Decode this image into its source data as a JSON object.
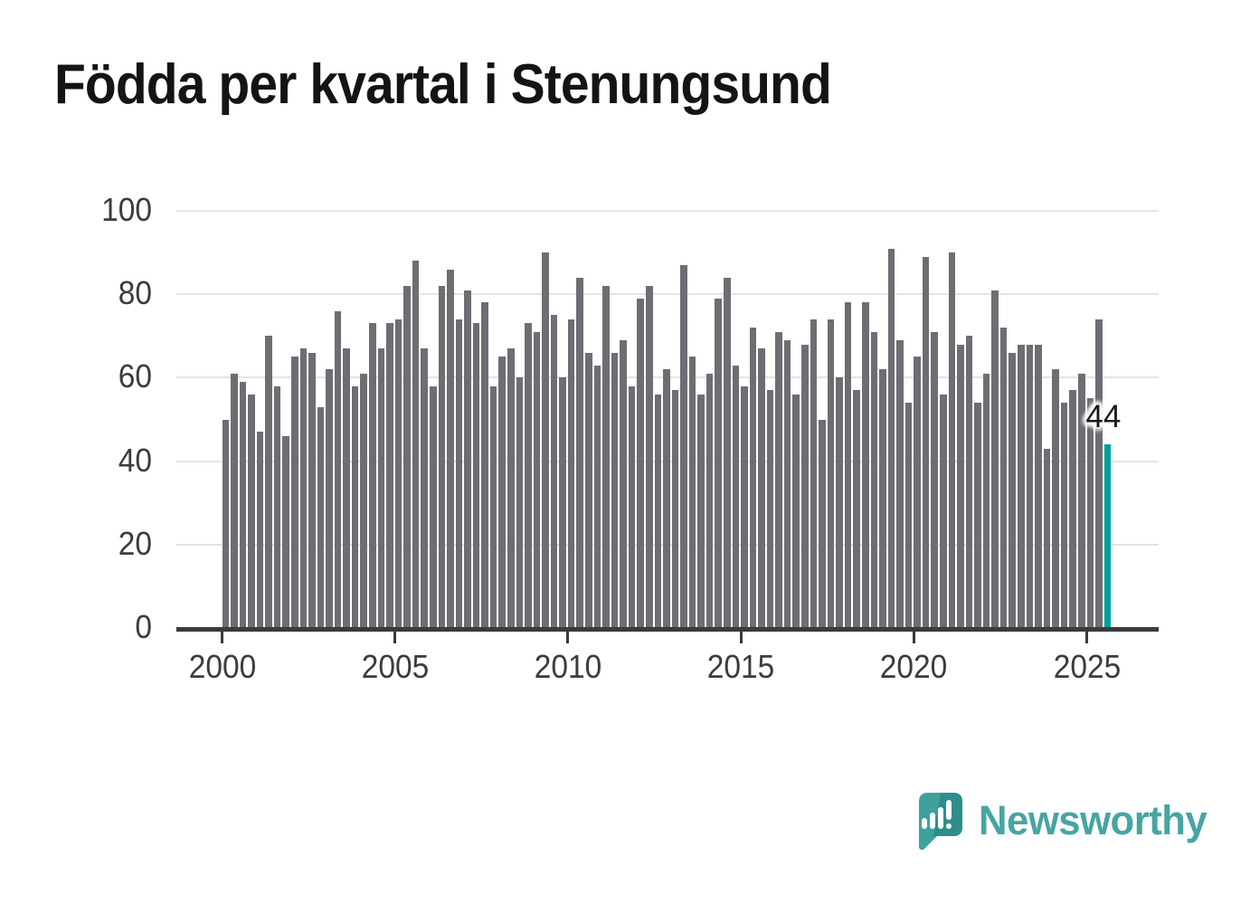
{
  "title": "Födda per kvartal i Stenungsund",
  "annotation": {
    "last_value_label": "44"
  },
  "logo": {
    "text": "Newsworthy",
    "icon": "newsworthy-speech-bubble-chart-icon"
  },
  "colors": {
    "bar": "#6d6d73",
    "highlight": "#00a09a",
    "axis": "#3a3a3e",
    "grid": "#e4e4e4",
    "tick_text": "#3c3c3c",
    "title_text": "#141414",
    "label_text": "#1a1a1a",
    "label_halo": "#ffffff",
    "logo_teal": "#46a5a3",
    "logo_icon": "#3ea19c",
    "logo_icon_dark": "#2e8e8a",
    "background": "#ffffff"
  },
  "chart_data": {
    "type": "bar",
    "title": "Födda per kvartal i Stenungsund",
    "x_unit": "quarter",
    "start_period": "2000 Q1",
    "end_period": "2025 Q3",
    "x_tick_labels": [
      "2000",
      "2005",
      "2010",
      "2015",
      "2020",
      "2025"
    ],
    "y_ticks": [
      0,
      20,
      40,
      60,
      80,
      100
    ],
    "ylim": [
      0,
      100
    ],
    "grid": true,
    "legend": "none",
    "highlight_last_bar": true,
    "last_bar_label": "44",
    "values": [
      50,
      61,
      59,
      56,
      47,
      70,
      58,
      46,
      65,
      67,
      66,
      53,
      62,
      76,
      67,
      58,
      61,
      73,
      67,
      73,
      74,
      82,
      88,
      67,
      58,
      82,
      86,
      74,
      81,
      73,
      78,
      58,
      65,
      67,
      60,
      73,
      71,
      90,
      75,
      60,
      74,
      84,
      66,
      63,
      82,
      66,
      69,
      58,
      79,
      82,
      56,
      62,
      57,
      87,
      65,
      56,
      61,
      79,
      84,
      63,
      58,
      72,
      67,
      57,
      71,
      69,
      56,
      68,
      74,
      50,
      74,
      60,
      78,
      57,
      78,
      71,
      62,
      91,
      69,
      54,
      65,
      89,
      71,
      56,
      90,
      68,
      70,
      54,
      61,
      81,
      72,
      66,
      68,
      68,
      68,
      43,
      62,
      54,
      57,
      61,
      55,
      74,
      44
    ]
  }
}
